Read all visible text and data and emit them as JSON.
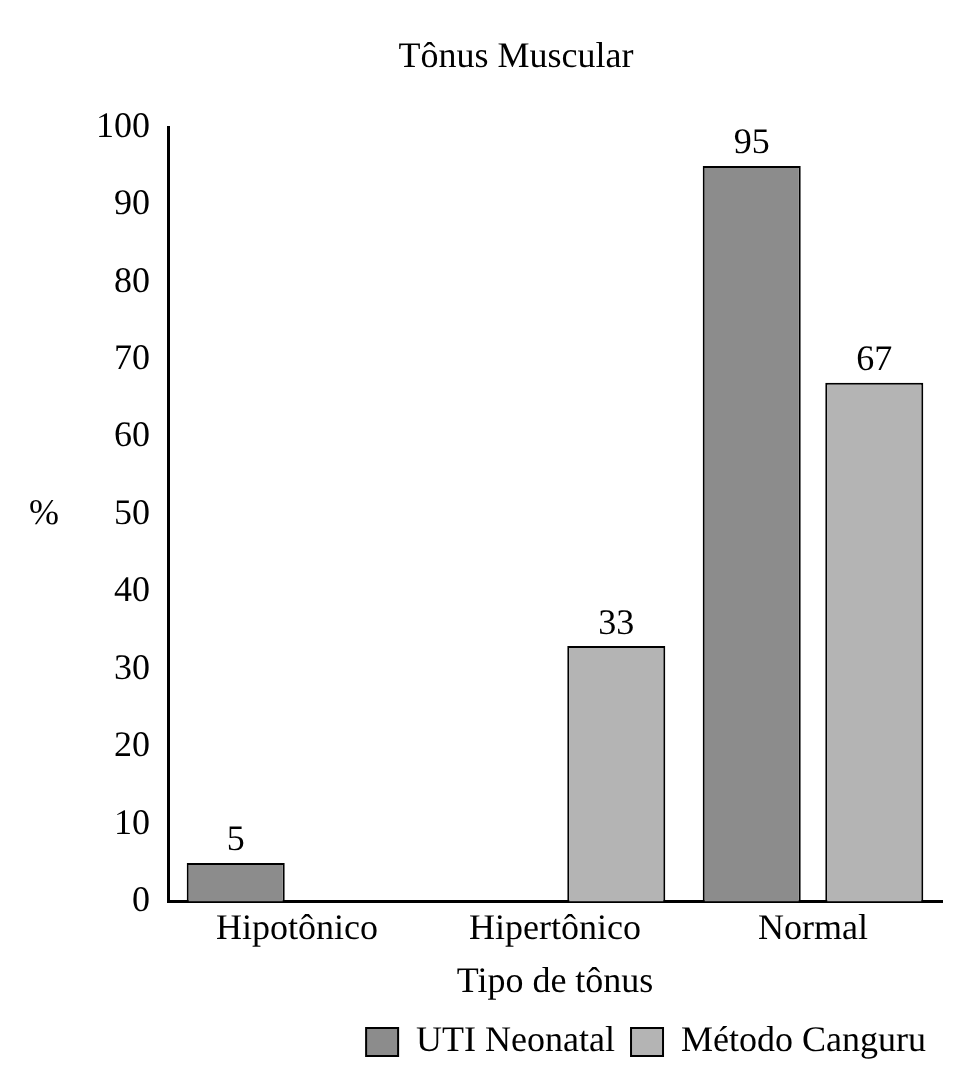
{
  "chart_data": {
    "type": "bar",
    "title": "Tônus Muscular",
    "xlabel": "Tipo de tônus",
    "ylabel": "%",
    "categories": [
      "Hipotônico",
      "Hipertônico",
      "Normal"
    ],
    "series": [
      {
        "name": "UTI Neonatal",
        "color": "#8c8c8c",
        "values": [
          5,
          null,
          95
        ]
      },
      {
        "name": "Método Canguru",
        "color": "#b4b4b4",
        "values": [
          null,
          33,
          67
        ]
      }
    ],
    "ylim": [
      0,
      100
    ],
    "yticks": [
      0,
      10,
      20,
      30,
      40,
      50,
      60,
      70,
      80,
      90,
      100
    ],
    "grid": false,
    "legend": "bottom",
    "data_labels": true
  }
}
